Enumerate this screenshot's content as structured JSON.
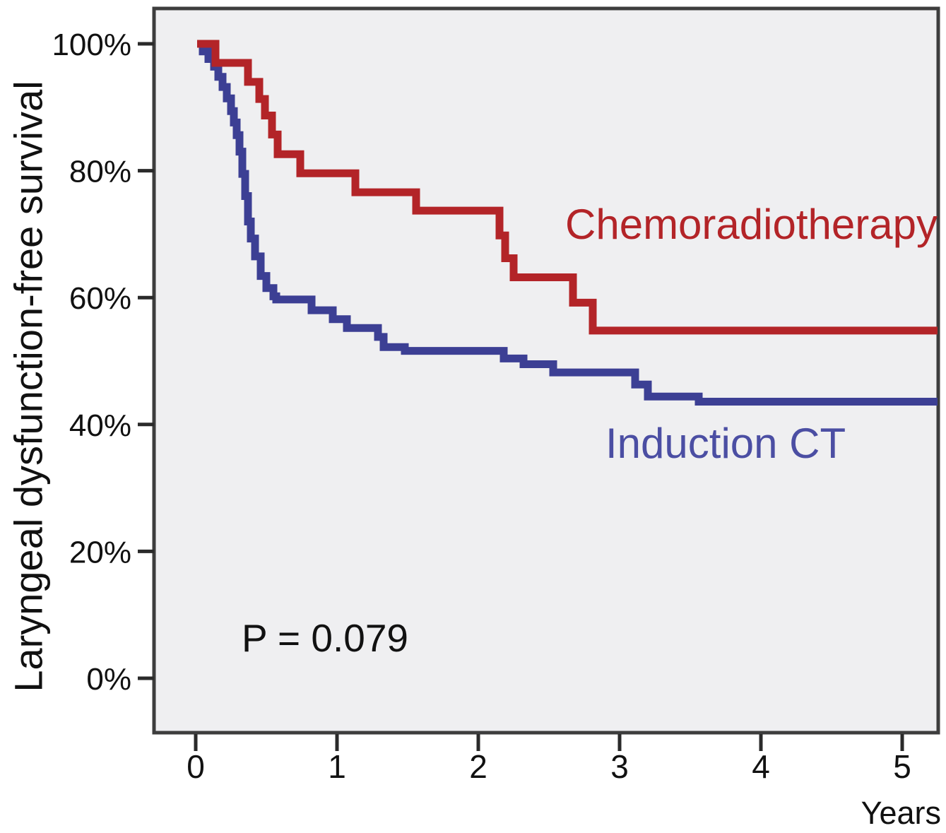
{
  "chart_data": {
    "type": "line",
    "subtype": "kaplan-meier-step",
    "title": "",
    "xlabel": "Years",
    "ylabel": "Laryngeal dysfunction-free survival",
    "xlim": [
      0,
      5.25
    ],
    "ylim": [
      0,
      100
    ],
    "x_ticks": [
      0,
      1,
      2,
      3,
      4,
      5
    ],
    "y_ticks": [
      100,
      80,
      60,
      40,
      20,
      0
    ],
    "y_tick_labels": [
      "100%",
      "80%",
      "60%",
      "40%",
      "20%",
      "0%"
    ],
    "grid": false,
    "legend_position": "inline-labels-on-plot",
    "plot_background": "#efeff1",
    "frame_color": "#3d3d3d",
    "tick_color": "#2a2a2a",
    "text_color": "#111111",
    "annotations": [
      {
        "text": "P = 0.079",
        "x_year": 0.33,
        "y_percent": 9,
        "color": "#111111"
      }
    ],
    "series": [
      {
        "name": "Chemoradiotherapy",
        "color": "#b32428",
        "label_color": "#b32428",
        "points_pct": [
          [
            0.01,
            100
          ],
          [
            0.14,
            97
          ],
          [
            0.37,
            94
          ],
          [
            0.45,
            91.3
          ],
          [
            0.49,
            88.7
          ],
          [
            0.54,
            85.7
          ],
          [
            0.58,
            82.6
          ],
          [
            0.74,
            79.6
          ],
          [
            1.13,
            76.6
          ],
          [
            1.56,
            73.7
          ],
          [
            2.15,
            69.8
          ],
          [
            2.19,
            66.2
          ],
          [
            2.25,
            63.2
          ],
          [
            2.67,
            59.2
          ],
          [
            2.81,
            54.8
          ],
          [
            5.25,
            54.8
          ]
        ]
      },
      {
        "name": "Induction CT",
        "color": "#3c3f94",
        "label_color": "#4b4ea3",
        "points_pct": [
          [
            0.01,
            100
          ],
          [
            0.05,
            98.8
          ],
          [
            0.09,
            97.6
          ],
          [
            0.13,
            96.4
          ],
          [
            0.16,
            94.8
          ],
          [
            0.19,
            93.2
          ],
          [
            0.22,
            91.4
          ],
          [
            0.25,
            89.4
          ],
          [
            0.27,
            87.6
          ],
          [
            0.29,
            85.6
          ],
          [
            0.31,
            83.0
          ],
          [
            0.33,
            79.5
          ],
          [
            0.35,
            76.0
          ],
          [
            0.37,
            72.0
          ],
          [
            0.39,
            69.3
          ],
          [
            0.42,
            66.5
          ],
          [
            0.46,
            63.4
          ],
          [
            0.5,
            61.5
          ],
          [
            0.55,
            60.2
          ],
          [
            0.57,
            59.7
          ],
          [
            0.82,
            58.0
          ],
          [
            0.97,
            56.6
          ],
          [
            1.07,
            55.2
          ],
          [
            1.29,
            53.8
          ],
          [
            1.33,
            52.2
          ],
          [
            1.48,
            51.6
          ],
          [
            2.18,
            50.4
          ],
          [
            2.32,
            49.5
          ],
          [
            2.53,
            48.2
          ],
          [
            3.11,
            46.3
          ],
          [
            3.2,
            44.4
          ],
          [
            3.56,
            43.6
          ],
          [
            5.25,
            43.6
          ]
        ]
      }
    ]
  }
}
